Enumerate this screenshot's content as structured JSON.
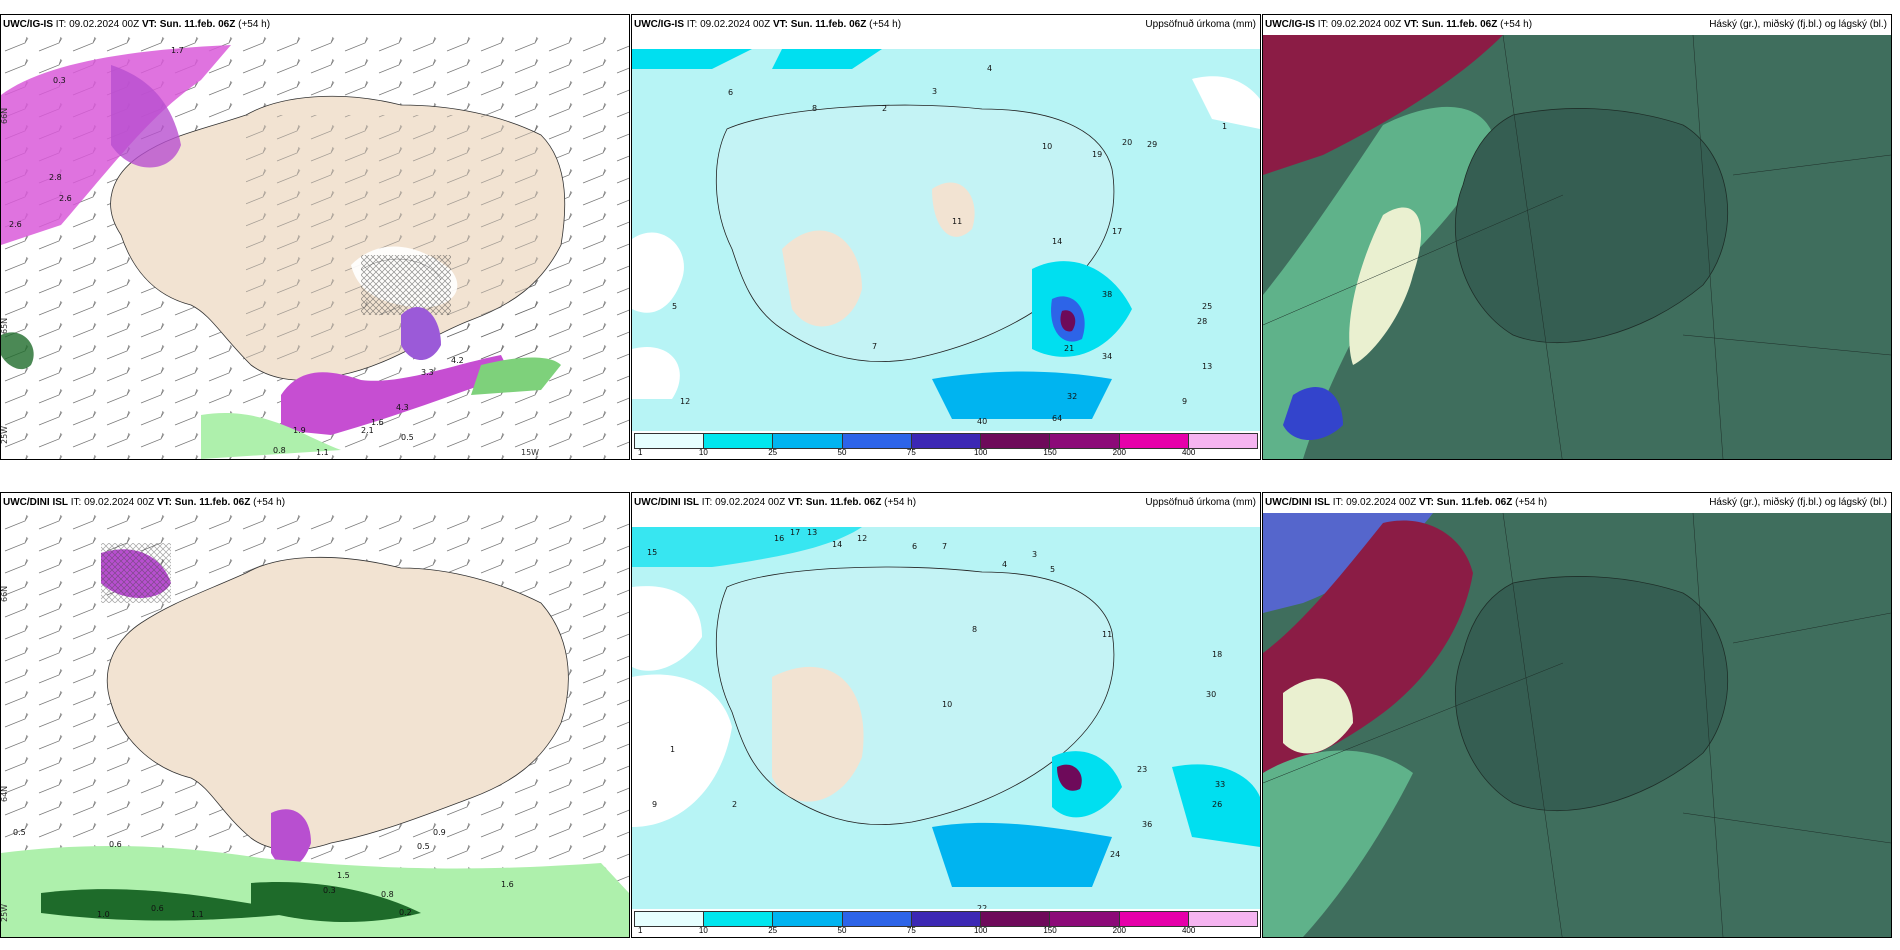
{
  "panels": [
    {
      "model": "UWC/IG-IS",
      "it": "IT: 09.02.2024 00Z",
      "vt": "VT: Sun. 11.feb. 06Z",
      "lead": "(+54 h)",
      "product": ""
    },
    {
      "model": "UWC/IG-IS",
      "it": "IT: 09.02.2024 00Z",
      "vt": "VT: Sun. 11.feb. 06Z",
      "lead": "(+54 h)",
      "product": "Uppsöfnuð úrkoma (mm)"
    },
    {
      "model": "UWC/IG-IS",
      "it": "IT: 09.02.2024 00Z",
      "vt": "VT: Sun. 11.feb. 06Z",
      "lead": "(+54 h)",
      "product": "Háský (gr.), miðský (fj.bl.) og lágský (bl.)"
    },
    {
      "model": "UWC/DINI ISL",
      "it": "IT: 09.02.2024 00Z",
      "vt": "VT: Sun. 11.feb. 06Z",
      "lead": "(+54 h)",
      "product": ""
    },
    {
      "model": "UWC/DINI ISL",
      "it": "IT: 09.02.2024 00Z",
      "vt": "VT: Sun. 11.feb. 06Z",
      "lead": "(+54 h)",
      "product": "Uppsöfnuð úrkoma (mm)"
    },
    {
      "model": "UWC/DINI ISL",
      "it": "IT: 09.02.2024 00Z",
      "vt": "VT: Sun. 11.feb. 06Z",
      "lead": "(+54 h)",
      "product": "Háský (gr.), miðský (fj.bl.) og lágský (bl.)"
    }
  ],
  "legend": {
    "ticks": [
      "1",
      "10",
      "25",
      "50",
      "75",
      "100",
      "150",
      "200",
      "400"
    ],
    "colors": [
      "#e6ffff",
      "#00e6ee",
      "#00b4f0",
      "#2d64e8",
      "#3c28b4",
      "#6e0a5a",
      "#8c0a78",
      "#e600aa",
      "#f5b4f0"
    ]
  },
  "grid_labels": {
    "lat": [
      "66N",
      "65N",
      "64N"
    ],
    "lon": [
      "25W",
      "15W"
    ]
  },
  "precip_labels_top": [
    "8",
    "4",
    "3",
    "2",
    "5",
    "6",
    "19",
    "20",
    "29",
    "10",
    "17",
    "14",
    "21",
    "32",
    "40",
    "64",
    "34",
    "38",
    "25",
    "28",
    "13",
    "9",
    "12",
    "11",
    "7",
    "1"
  ],
  "precip_labels_bottom": [
    "15",
    "16",
    "17",
    "13",
    "12",
    "14",
    "6",
    "7",
    "8",
    "4",
    "3",
    "5",
    "11",
    "18",
    "30",
    "33",
    "26",
    "36",
    "24",
    "23",
    "22",
    "10",
    "2",
    "9",
    "1"
  ],
  "snow_labels_top": [
    "1.7",
    "2.8",
    "2.6",
    "0.3",
    "4.2",
    "3.3",
    "1.9",
    "2.1",
    "1.6",
    "4.3",
    "1.1",
    "0.8",
    "0.5"
  ],
  "snow_labels_bottom": [
    "0.5",
    "0.6",
    "1.0",
    "1.5",
    "0.8",
    "0.3",
    "1.6",
    "0.2",
    "0.9",
    "1.1"
  ]
}
